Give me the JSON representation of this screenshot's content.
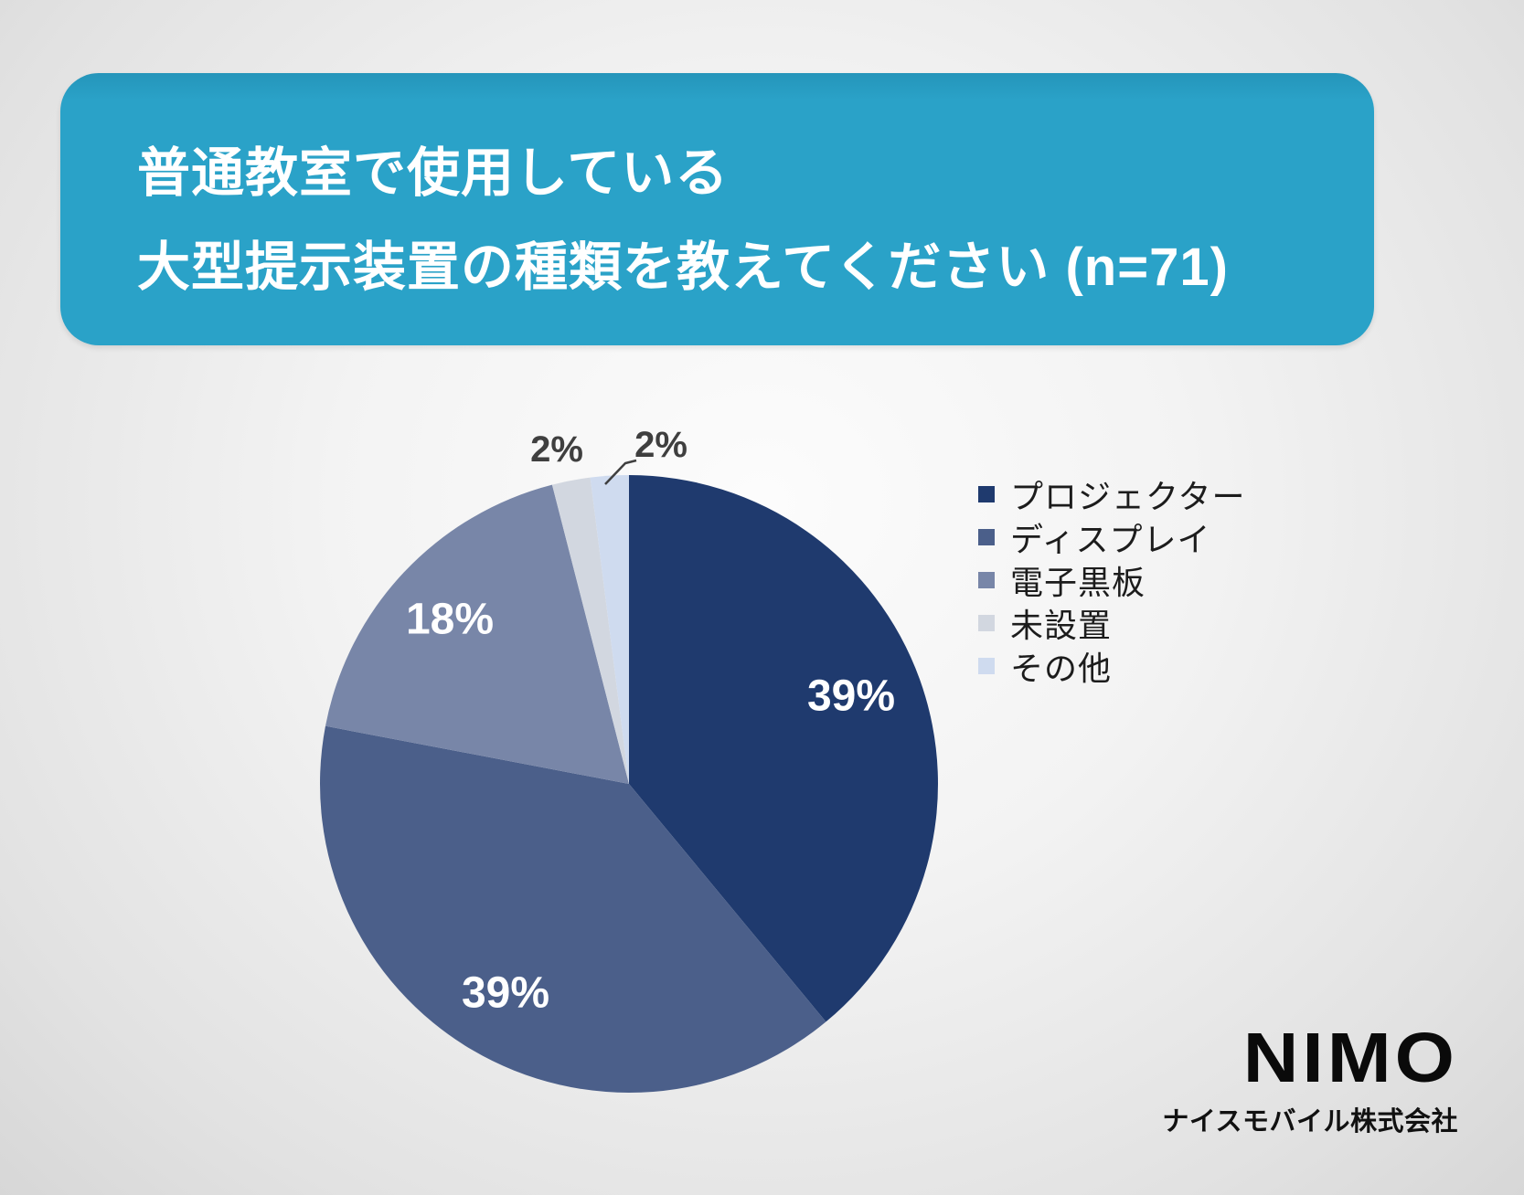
{
  "header": {
    "line1": "普通教室で使用している",
    "line2": "大型提示装置の種類を教えてください (n=71)"
  },
  "chart_data": {
    "type": "pie",
    "title": "普通教室で使用している大型提示装置の種類を教えてください (n=71)",
    "sample_label": "n=71",
    "categories": [
      "プロジェクター",
      "ディスプレイ",
      "電子黒板",
      "未設置",
      "その他"
    ],
    "values": [
      39,
      39,
      18,
      2,
      2
    ],
    "unit": "%",
    "colors": [
      "#1F3A6E",
      "#4B5F8A",
      "#7886A8",
      "#D2D7E0",
      "#CFDBEF"
    ],
    "direction": "clockwise",
    "start_angle_deg": 0,
    "legend_position": "right",
    "label_style": {
      "inside_color": "#FFFFFF",
      "outside_color": "#3F3F3F"
    }
  },
  "footer": {
    "logo": "NIMO",
    "company": "ナイスモバイル株式会社"
  },
  "theme": {
    "banner_color": "#2AA2C8",
    "banner_text_color": "#FFFFFF"
  }
}
